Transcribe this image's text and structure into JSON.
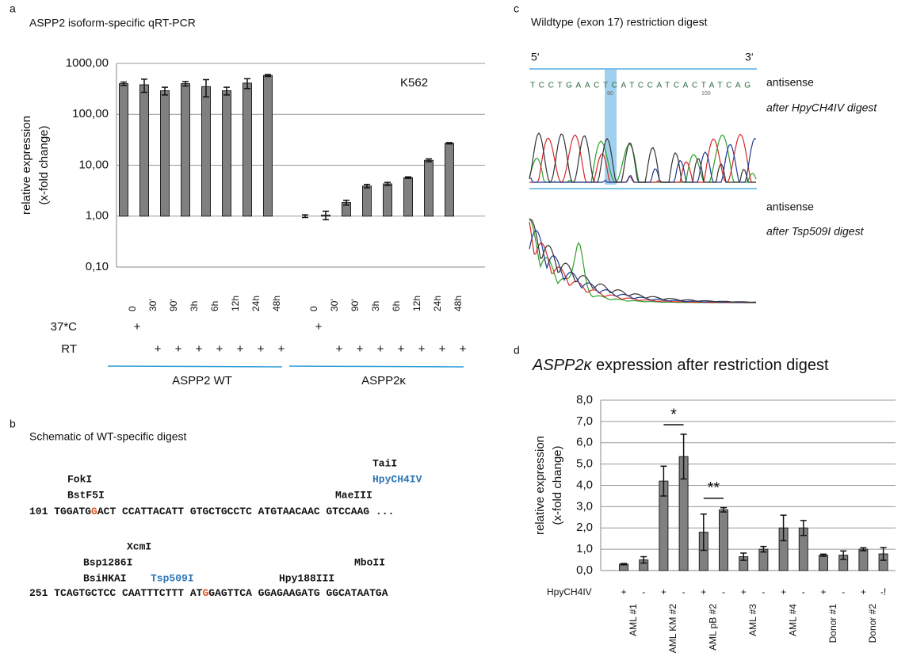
{
  "chart_data": [
    {
      "type": "bar",
      "panel": "a",
      "title": "ASPP2 isoform-specific qRT-PCR",
      "ylabel": [
        "relative expression",
        "(x-fold change)"
      ],
      "annotation": "K562",
      "log_scale": true,
      "ylim": [
        0.1,
        1000
      ],
      "yticks": [
        {
          "value": 0.1,
          "label": "0,10"
        },
        {
          "value": 1,
          "label": "1,00"
        },
        {
          "value": 10,
          "label": "10,00"
        },
        {
          "value": 100,
          "label": "100,00"
        },
        {
          "value": 1000,
          "label": "1000,00"
        }
      ],
      "grid": true,
      "color": "#808080",
      "group_line_color": "#2e9fd8",
      "condition_labels": [
        "37*C",
        "RT"
      ],
      "groups": [
        {
          "name": "ASPP2 WT",
          "categories": [
            "0",
            "30'",
            "90'",
            "3h",
            "6h",
            "12h",
            "24h",
            "48h"
          ],
          "values": [
            400,
            380,
            290,
            400,
            350,
            290,
            410,
            580
          ],
          "errors": [
            30,
            110,
            50,
            40,
            130,
            50,
            90,
            25
          ],
          "conditions": [
            [
              "+",
              null,
              null,
              null,
              null,
              null,
              null,
              null
            ],
            [
              null,
              "+",
              "+",
              "+",
              "+",
              "+",
              "+",
              "+"
            ]
          ]
        },
        {
          "name": "ASPP2κ",
          "categories": [
            "0",
            "30'",
            "90'",
            "3h",
            "6h",
            "12h",
            "24h",
            "48h"
          ],
          "values": [
            1.0,
            1.05,
            1.85,
            3.9,
            4.3,
            5.7,
            12.5,
            27
          ],
          "errors": [
            0.06,
            0.2,
            0.2,
            0.3,
            0.3,
            0.2,
            0.8,
            0.8
          ],
          "conditions": [
            [
              "+",
              null,
              null,
              null,
              null,
              null,
              null,
              null
            ],
            [
              null,
              "+",
              "+",
              "+",
              "+",
              "+",
              "+",
              "+"
            ]
          ]
        }
      ]
    },
    {
      "type": "bar",
      "panel": "d",
      "title": {
        "gene": "ASPP2κ",
        "text": "expression after restriction digest"
      },
      "ylabel": [
        "relative expression",
        "(x-fold change)"
      ],
      "log_scale": false,
      "ylim": [
        0,
        8
      ],
      "yticks": [
        {
          "value": 0,
          "label": "0,0"
        },
        {
          "value": 1,
          "label": "1,0"
        },
        {
          "value": 2,
          "label": "2,0"
        },
        {
          "value": 3,
          "label": "3,0"
        },
        {
          "value": 4,
          "label": "4,0"
        },
        {
          "value": 5,
          "label": "5,0"
        },
        {
          "value": 6,
          "label": "6,0"
        },
        {
          "value": 7,
          "label": "7,0"
        },
        {
          "value": 8,
          "label": "8,0"
        }
      ],
      "grid": true,
      "color": "#808080",
      "marker_label": "HpyCH4IV",
      "groups": [
        {
          "name": "AML #1",
          "signs": [
            "+",
            "-"
          ],
          "values": [
            0.3,
            0.5
          ],
          "errors": [
            0.03,
            0.15
          ]
        },
        {
          "name": "AML KM #2",
          "signs": [
            "+",
            "-"
          ],
          "values": [
            4.2,
            5.35
          ],
          "errors": [
            0.7,
            1.05
          ],
          "significance": "*"
        },
        {
          "name": "AML pB #2",
          "signs": [
            "+",
            "-"
          ],
          "values": [
            1.8,
            2.85
          ],
          "errors": [
            0.85,
            0.1
          ],
          "significance": "**"
        },
        {
          "name": "AML #3",
          "signs": [
            "+",
            "-"
          ],
          "values": [
            0.65,
            1.0
          ],
          "errors": [
            0.17,
            0.13
          ]
        },
        {
          "name": "AML #4",
          "signs": [
            "+",
            "-"
          ],
          "values": [
            2.0,
            2.0
          ],
          "errors": [
            0.6,
            0.35
          ]
        },
        {
          "name": "Donor #1",
          "signs": [
            "+",
            "-"
          ],
          "values": [
            0.72,
            0.72
          ],
          "errors": [
            0.05,
            0.2
          ]
        },
        {
          "name": "Donor #2",
          "signs": [
            "+",
            "-!"
          ],
          "values": [
            1.0,
            0.78
          ],
          "errors": [
            0.07,
            0.3
          ]
        }
      ]
    }
  ],
  "panel_b": {
    "label": "b",
    "title": "Schematic of WT-specific digest",
    "line1": {
      "number": "101",
      "parts": [
        "TGGATG",
        "G",
        "ACT CCATTACATT GTGCTGCCTC ATGTAACAAC GTCCAAG ..."
      ]
    },
    "line2": {
      "number": "251",
      "parts": [
        "TCAGTGCTCC CAATTTCTTT AT",
        "G",
        "GAGTTCA GGAGAAGATG GGCATAATGA"
      ]
    },
    "enzymes1": [
      "FokI",
      "BstF5I",
      "TaiI",
      "HpyCH4IV",
      "MaeIII"
    ],
    "enzymes2": [
      "XcmI",
      "Bsp1286I",
      "BsiHKAI",
      "Tsp509I",
      "Hpy188III",
      "MboII"
    ]
  },
  "panel_c": {
    "label": "c",
    "title": "Wildtype (exon 17) restriction digest",
    "end5": "5‘",
    "end3": "3‘",
    "sequence": "TCCTGAACTCATCCATCACTATCAG",
    "pos1": "90",
    "pos2": "100",
    "trace1": [
      "antisense",
      "after HpyCH4IV digest"
    ],
    "trace2": [
      "antisense",
      "after Tsp509I digest"
    ]
  }
}
